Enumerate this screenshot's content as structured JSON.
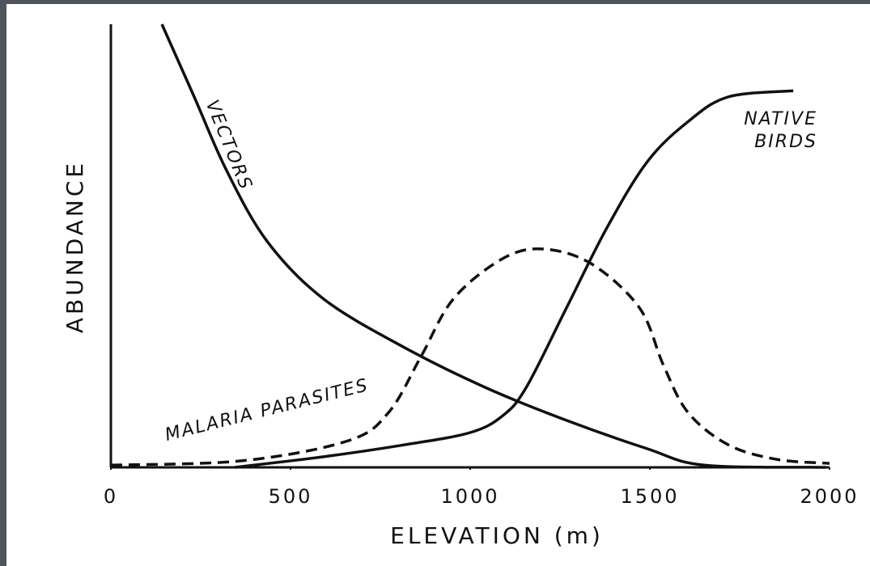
{
  "chart_data": {
    "type": "line",
    "xlabel": "ELEVATION (m)",
    "ylabel": "ABUNDANCE",
    "xlim": [
      0,
      2000
    ],
    "xticks": [
      0,
      500,
      1000,
      1500,
      2000
    ],
    "ylim": [
      0,
      100
    ],
    "series": [
      {
        "name": "VECTORS",
        "color": "#111111",
        "style": "solid",
        "x": [
          142,
          232,
          322,
          435,
          592,
          818,
          1043,
          1268,
          1493,
          1651,
          1989
        ],
        "values": [
          100,
          83.6,
          67,
          51,
          38,
          27,
          18,
          10.6,
          4.2,
          0.5,
          0
        ]
      },
      {
        "name": "MALARIA PARASITES",
        "color": "#111111",
        "style": "dashed",
        "x": [
          0,
          367,
          660,
          773,
          863,
          953,
          1088,
          1200,
          1336,
          1471,
          1538,
          1606,
          1718,
          1853,
          2000
        ],
        "values": [
          0.5,
          1.5,
          6,
          12.4,
          25,
          38,
          47,
          49.3,
          46,
          36,
          23,
          12.4,
          5.1,
          1.8,
          0.9
        ]
      },
      {
        "name": "NATIVE BIRDS",
        "color": "#111111",
        "style": "solid",
        "x": [
          345,
          592,
          818,
          998,
          1088,
          1155,
          1268,
          1380,
          1493,
          1606,
          1718,
          1899
        ],
        "values": [
          0,
          2.4,
          5.1,
          7.8,
          11.5,
          17.9,
          36,
          54,
          69,
          78,
          83.6,
          85
        ]
      }
    ]
  }
}
